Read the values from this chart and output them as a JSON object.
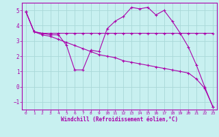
{
  "xlabel": "Windchill (Refroidissement éolien,°C)",
  "background_color": "#c8f0f0",
  "grid_color": "#a8d8d8",
  "line_color": "#aa00aa",
  "xlim": [
    -0.5,
    23.5
  ],
  "ylim": [
    -1.5,
    5.5
  ],
  "yticks": [
    -1,
    0,
    1,
    2,
    3,
    4,
    5
  ],
  "xticks": [
    0,
    1,
    2,
    3,
    4,
    5,
    6,
    7,
    8,
    9,
    10,
    11,
    12,
    13,
    14,
    15,
    16,
    17,
    18,
    19,
    20,
    21,
    22,
    23
  ],
  "hours": [
    0,
    1,
    2,
    3,
    4,
    5,
    6,
    7,
    8,
    9,
    10,
    11,
    12,
    13,
    14,
    15,
    16,
    17,
    18,
    19,
    20,
    21,
    22,
    23
  ],
  "line1": [
    4.9,
    3.6,
    3.5,
    3.5,
    3.5,
    3.5,
    3.5,
    3.5,
    3.5,
    3.5,
    3.5,
    3.5,
    3.5,
    3.5,
    3.5,
    3.5,
    3.5,
    3.5,
    3.5,
    3.5,
    3.5,
    3.5,
    3.5,
    3.5
  ],
  "line2": [
    4.9,
    3.6,
    3.5,
    3.4,
    3.4,
    2.7,
    1.1,
    1.1,
    2.4,
    2.3,
    3.8,
    4.3,
    4.6,
    5.2,
    5.1,
    5.2,
    4.7,
    5.0,
    4.3,
    3.5,
    2.6,
    1.4,
    0.0,
    -1.3
  ],
  "line3": [
    4.9,
    3.6,
    3.4,
    3.3,
    3.1,
    2.9,
    2.7,
    2.5,
    2.3,
    2.1,
    2.0,
    1.9,
    1.7,
    1.6,
    1.5,
    1.4,
    1.3,
    1.2,
    1.1,
    1.0,
    0.9,
    0.5,
    -0.1,
    -1.3
  ]
}
